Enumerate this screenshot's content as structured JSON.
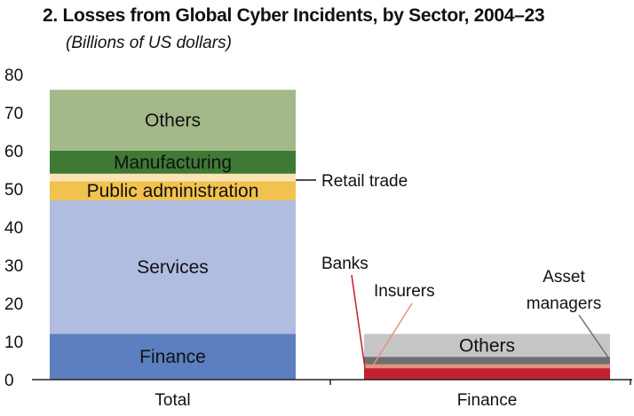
{
  "title": "2. Losses from Global Cyber Incidents, by Sector, 2004–23",
  "subtitle": "(Billions of US dollars)",
  "chart_data": {
    "type": "bar",
    "stacked": true,
    "ylim": [
      0,
      80
    ],
    "yticks": [
      "0",
      "10",
      "20",
      "30",
      "40",
      "50",
      "60",
      "70",
      "80"
    ],
    "categories": [
      "Total",
      "Finance"
    ],
    "bars": [
      {
        "category": "Total",
        "segments": [
          {
            "name": "Finance",
            "value": 12,
            "color": "#5b7fbf",
            "label_color": "#111111"
          },
          {
            "name": "Services",
            "value": 35,
            "color": "#b0bde0",
            "label_color": "#111111"
          },
          {
            "name": "Public administration",
            "value": 5,
            "color": "#f2c24e",
            "label_color": "#111111"
          },
          {
            "name": "Retail trade",
            "value": 2,
            "color": "#fbe3b3",
            "label_color": "#111111",
            "annotated": true
          },
          {
            "name": "Manufacturing",
            "value": 6,
            "color": "#3f7a35",
            "label_color": "#ffffff"
          },
          {
            "name": "Others",
            "value": 16,
            "color": "#a3b98a",
            "label_color": "#111111"
          }
        ]
      },
      {
        "category": "Finance",
        "segments": [
          {
            "name": "Banks",
            "value": 3,
            "color": "#c4202f",
            "annotated": true
          },
          {
            "name": "Insurers",
            "value": 1,
            "color": "#e8907e",
            "annotated": true
          },
          {
            "name": "Asset managers",
            "value": 2,
            "color": "#6f6f6f",
            "annotated": true
          },
          {
            "name": "Others",
            "value": 6,
            "color": "#c6c6c6",
            "label_color": "#111111"
          }
        ]
      }
    ],
    "annotations": {
      "retail": "Retail trade",
      "banks": "Banks",
      "insurers": "Insurers",
      "asset_line1": "Asset",
      "asset_line2": "managers"
    }
  }
}
